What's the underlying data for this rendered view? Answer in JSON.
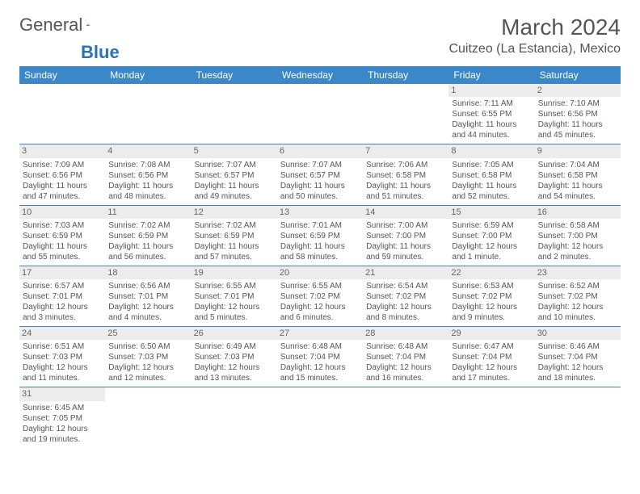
{
  "logo": {
    "text1": "General",
    "text2": "Blue",
    "icon_color": "#2a72b5"
  },
  "title": "March 2024",
  "location": "Cuitzeo (La Estancia), Mexico",
  "colors": {
    "header_bg": "#3b87c8",
    "header_fg": "#ffffff",
    "border_blue": "#3b87c8",
    "border_light": "#cccccc",
    "daynum_bg": "#ececec",
    "text": "#555555"
  },
  "day_headers": [
    "Sunday",
    "Monday",
    "Tuesday",
    "Wednesday",
    "Thursday",
    "Friday",
    "Saturday"
  ],
  "weeks": [
    [
      {
        "n": "",
        "sr": "",
        "ss": "",
        "dl": ""
      },
      {
        "n": "",
        "sr": "",
        "ss": "",
        "dl": ""
      },
      {
        "n": "",
        "sr": "",
        "ss": "",
        "dl": ""
      },
      {
        "n": "",
        "sr": "",
        "ss": "",
        "dl": ""
      },
      {
        "n": "",
        "sr": "",
        "ss": "",
        "dl": ""
      },
      {
        "n": "1",
        "sr": "Sunrise: 7:11 AM",
        "ss": "Sunset: 6:55 PM",
        "dl": "Daylight: 11 hours and 44 minutes."
      },
      {
        "n": "2",
        "sr": "Sunrise: 7:10 AM",
        "ss": "Sunset: 6:56 PM",
        "dl": "Daylight: 11 hours and 45 minutes."
      }
    ],
    [
      {
        "n": "3",
        "sr": "Sunrise: 7:09 AM",
        "ss": "Sunset: 6:56 PM",
        "dl": "Daylight: 11 hours and 47 minutes."
      },
      {
        "n": "4",
        "sr": "Sunrise: 7:08 AM",
        "ss": "Sunset: 6:56 PM",
        "dl": "Daylight: 11 hours and 48 minutes."
      },
      {
        "n": "5",
        "sr": "Sunrise: 7:07 AM",
        "ss": "Sunset: 6:57 PM",
        "dl": "Daylight: 11 hours and 49 minutes."
      },
      {
        "n": "6",
        "sr": "Sunrise: 7:07 AM",
        "ss": "Sunset: 6:57 PM",
        "dl": "Daylight: 11 hours and 50 minutes."
      },
      {
        "n": "7",
        "sr": "Sunrise: 7:06 AM",
        "ss": "Sunset: 6:58 PM",
        "dl": "Daylight: 11 hours and 51 minutes."
      },
      {
        "n": "8",
        "sr": "Sunrise: 7:05 AM",
        "ss": "Sunset: 6:58 PM",
        "dl": "Daylight: 11 hours and 52 minutes."
      },
      {
        "n": "9",
        "sr": "Sunrise: 7:04 AM",
        "ss": "Sunset: 6:58 PM",
        "dl": "Daylight: 11 hours and 54 minutes."
      }
    ],
    [
      {
        "n": "10",
        "sr": "Sunrise: 7:03 AM",
        "ss": "Sunset: 6:59 PM",
        "dl": "Daylight: 11 hours and 55 minutes."
      },
      {
        "n": "11",
        "sr": "Sunrise: 7:02 AM",
        "ss": "Sunset: 6:59 PM",
        "dl": "Daylight: 11 hours and 56 minutes."
      },
      {
        "n": "12",
        "sr": "Sunrise: 7:02 AM",
        "ss": "Sunset: 6:59 PM",
        "dl": "Daylight: 11 hours and 57 minutes."
      },
      {
        "n": "13",
        "sr": "Sunrise: 7:01 AM",
        "ss": "Sunset: 6:59 PM",
        "dl": "Daylight: 11 hours and 58 minutes."
      },
      {
        "n": "14",
        "sr": "Sunrise: 7:00 AM",
        "ss": "Sunset: 7:00 PM",
        "dl": "Daylight: 11 hours and 59 minutes."
      },
      {
        "n": "15",
        "sr": "Sunrise: 6:59 AM",
        "ss": "Sunset: 7:00 PM",
        "dl": "Daylight: 12 hours and 1 minute."
      },
      {
        "n": "16",
        "sr": "Sunrise: 6:58 AM",
        "ss": "Sunset: 7:00 PM",
        "dl": "Daylight: 12 hours and 2 minutes."
      }
    ],
    [
      {
        "n": "17",
        "sr": "Sunrise: 6:57 AM",
        "ss": "Sunset: 7:01 PM",
        "dl": "Daylight: 12 hours and 3 minutes."
      },
      {
        "n": "18",
        "sr": "Sunrise: 6:56 AM",
        "ss": "Sunset: 7:01 PM",
        "dl": "Daylight: 12 hours and 4 minutes."
      },
      {
        "n": "19",
        "sr": "Sunrise: 6:55 AM",
        "ss": "Sunset: 7:01 PM",
        "dl": "Daylight: 12 hours and 5 minutes."
      },
      {
        "n": "20",
        "sr": "Sunrise: 6:55 AM",
        "ss": "Sunset: 7:02 PM",
        "dl": "Daylight: 12 hours and 6 minutes."
      },
      {
        "n": "21",
        "sr": "Sunrise: 6:54 AM",
        "ss": "Sunset: 7:02 PM",
        "dl": "Daylight: 12 hours and 8 minutes."
      },
      {
        "n": "22",
        "sr": "Sunrise: 6:53 AM",
        "ss": "Sunset: 7:02 PM",
        "dl": "Daylight: 12 hours and 9 minutes."
      },
      {
        "n": "23",
        "sr": "Sunrise: 6:52 AM",
        "ss": "Sunset: 7:02 PM",
        "dl": "Daylight: 12 hours and 10 minutes."
      }
    ],
    [
      {
        "n": "24",
        "sr": "Sunrise: 6:51 AM",
        "ss": "Sunset: 7:03 PM",
        "dl": "Daylight: 12 hours and 11 minutes."
      },
      {
        "n": "25",
        "sr": "Sunrise: 6:50 AM",
        "ss": "Sunset: 7:03 PM",
        "dl": "Daylight: 12 hours and 12 minutes."
      },
      {
        "n": "26",
        "sr": "Sunrise: 6:49 AM",
        "ss": "Sunset: 7:03 PM",
        "dl": "Daylight: 12 hours and 13 minutes."
      },
      {
        "n": "27",
        "sr": "Sunrise: 6:48 AM",
        "ss": "Sunset: 7:04 PM",
        "dl": "Daylight: 12 hours and 15 minutes."
      },
      {
        "n": "28",
        "sr": "Sunrise: 6:48 AM",
        "ss": "Sunset: 7:04 PM",
        "dl": "Daylight: 12 hours and 16 minutes."
      },
      {
        "n": "29",
        "sr": "Sunrise: 6:47 AM",
        "ss": "Sunset: 7:04 PM",
        "dl": "Daylight: 12 hours and 17 minutes."
      },
      {
        "n": "30",
        "sr": "Sunrise: 6:46 AM",
        "ss": "Sunset: 7:04 PM",
        "dl": "Daylight: 12 hours and 18 minutes."
      }
    ],
    [
      {
        "n": "31",
        "sr": "Sunrise: 6:45 AM",
        "ss": "Sunset: 7:05 PM",
        "dl": "Daylight: 12 hours and 19 minutes."
      },
      {
        "n": "",
        "sr": "",
        "ss": "",
        "dl": ""
      },
      {
        "n": "",
        "sr": "",
        "ss": "",
        "dl": ""
      },
      {
        "n": "",
        "sr": "",
        "ss": "",
        "dl": ""
      },
      {
        "n": "",
        "sr": "",
        "ss": "",
        "dl": ""
      },
      {
        "n": "",
        "sr": "",
        "ss": "",
        "dl": ""
      },
      {
        "n": "",
        "sr": "",
        "ss": "",
        "dl": ""
      }
    ]
  ]
}
